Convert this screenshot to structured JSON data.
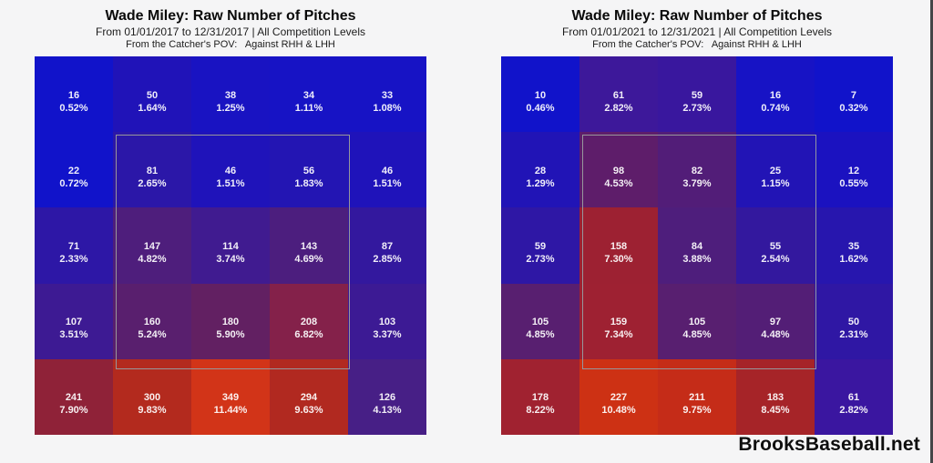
{
  "page": {
    "background": "#f5f5f6",
    "watermark": "BrooksBaseball.net"
  },
  "strike_zone": {
    "outline_color": "#97979c",
    "covers": "center 3x3 cells (rows 2-4, columns 2-4)"
  },
  "chart_data": [
    {
      "type": "heatmap",
      "title": "Wade Miley: Raw Number of Pitches",
      "subtitle": "From 01/01/2017 to 12/31/2017 | All Competition Levels",
      "pov": "From the Catcher's POV:   Against RHH & LHH",
      "grid": "5x5 pitch-location zones, catcher's point of view, strike zone outlined over center 3x3",
      "cells": [
        [
          {
            "count": "16",
            "pct": "0.52%",
            "color": "#1113ca"
          },
          {
            "count": "50",
            "pct": "1.64%",
            "color": "#2013b8"
          },
          {
            "count": "38",
            "pct": "1.25%",
            "color": "#1913c2"
          },
          {
            "count": "34",
            "pct": "1.11%",
            "color": "#1713c5"
          },
          {
            "count": "33",
            "pct": "1.08%",
            "color": "#1713c5"
          }
        ],
        [
          {
            "count": "22",
            "pct": "0.72%",
            "color": "#1113ca"
          },
          {
            "count": "81",
            "pct": "2.65%",
            "color": "#2b17a8"
          },
          {
            "count": "46",
            "pct": "1.51%",
            "color": "#1f13ba"
          },
          {
            "count": "56",
            "pct": "1.83%",
            "color": "#2315b3"
          },
          {
            "count": "46",
            "pct": "1.51%",
            "color": "#1f13ba"
          }
        ],
        [
          {
            "count": "71",
            "pct": "2.33%",
            "color": "#2d17a6"
          },
          {
            "count": "147",
            "pct": "4.82%",
            "color": "#4e1e7c"
          },
          {
            "count": "114",
            "pct": "3.74%",
            "color": "#401b90"
          },
          {
            "count": "143",
            "pct": "4.69%",
            "color": "#4c1e7e"
          },
          {
            "count": "87",
            "pct": "2.85%",
            "color": "#33189e"
          }
        ],
        [
          {
            "count": "107",
            "pct": "3.51%",
            "color": "#3d1a93"
          },
          {
            "count": "160",
            "pct": "5.24%",
            "color": "#591f6e"
          },
          {
            "count": "180",
            "pct": "5.90%",
            "color": "#622062"
          },
          {
            "count": "208",
            "pct": "6.82%",
            "color": "#84214a"
          },
          {
            "count": "103",
            "pct": "3.37%",
            "color": "#3c1a94"
          }
        ],
        [
          {
            "count": "241",
            "pct": "7.90%",
            "color": "#8f2238"
          },
          {
            "count": "300",
            "pct": "9.83%",
            "color": "#b32a1e"
          },
          {
            "count": "349",
            "pct": "11.44%",
            "color": "#d23418"
          },
          {
            "count": "294",
            "pct": "9.63%",
            "color": "#b12920"
          },
          {
            "count": "126",
            "pct": "4.13%",
            "color": "#471f86"
          }
        ]
      ]
    },
    {
      "type": "heatmap",
      "title": "Wade Miley: Raw Number of Pitches",
      "subtitle": "From 01/01/2021 to 12/31/2021 | All Competition Levels",
      "pov": "From the Catcher's POV:   Against RHH & LHH",
      "grid": "5x5 pitch-location zones, catcher's point of view, strike zone outlined over center 3x3",
      "cells": [
        [
          {
            "count": "10",
            "pct": "0.46%",
            "color": "#1113ca"
          },
          {
            "count": "61",
            "pct": "2.82%",
            "color": "#3d189a"
          },
          {
            "count": "59",
            "pct": "2.73%",
            "color": "#39179e"
          },
          {
            "count": "16",
            "pct": "0.74%",
            "color": "#1713c5"
          },
          {
            "count": "7",
            "pct": "0.32%",
            "color": "#1113ca"
          }
        ],
        [
          {
            "count": "28",
            "pct": "1.29%",
            "color": "#2114b6"
          },
          {
            "count": "98",
            "pct": "4.53%",
            "color": "#5e1d6a"
          },
          {
            "count": "82",
            "pct": "3.79%",
            "color": "#521d78"
          },
          {
            "count": "25",
            "pct": "1.15%",
            "color": "#2214b5"
          },
          {
            "count": "12",
            "pct": "0.55%",
            "color": "#1b12c0"
          }
        ],
        [
          {
            "count": "59",
            "pct": "2.73%",
            "color": "#2e17a5"
          },
          {
            "count": "158",
            "pct": "7.30%",
            "color": "#9d2132"
          },
          {
            "count": "84",
            "pct": "3.88%",
            "color": "#4e1e7c"
          },
          {
            "count": "55",
            "pct": "2.54%",
            "color": "#33189e"
          },
          {
            "count": "35",
            "pct": "1.62%",
            "color": "#2716ae"
          }
        ],
        [
          {
            "count": "105",
            "pct": "4.85%",
            "color": "#581f70"
          },
          {
            "count": "159",
            "pct": "7.34%",
            "color": "#9e2132"
          },
          {
            "count": "105",
            "pct": "4.85%",
            "color": "#581f70"
          },
          {
            "count": "97",
            "pct": "4.48%",
            "color": "#531e76"
          },
          {
            "count": "50",
            "pct": "2.31%",
            "color": "#2f17a4"
          }
        ],
        [
          {
            "count": "178",
            "pct": "8.22%",
            "color": "#a02230"
          },
          {
            "count": "227",
            "pct": "10.48%",
            "color": "#cd3114"
          },
          {
            "count": "211",
            "pct": "9.75%",
            "color": "#c52c18"
          },
          {
            "count": "183",
            "pct": "8.45%",
            "color": "#a62428"
          },
          {
            "count": "61",
            "pct": "2.82%",
            "color": "#3a16a0"
          }
        ]
      ]
    }
  ]
}
